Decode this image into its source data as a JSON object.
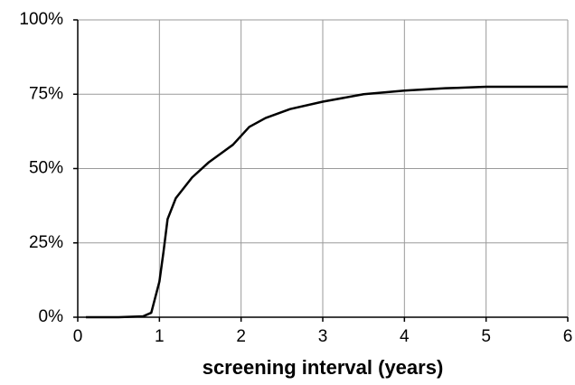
{
  "chart_data": {
    "type": "line",
    "x_label": "screening interval (years)",
    "x": [
      0.1,
      0.5,
      0.8,
      0.9,
      1.0,
      1.05,
      1.1,
      1.2,
      1.4,
      1.6,
      1.8,
      1.9,
      2.0,
      2.1,
      2.3,
      2.6,
      3.0,
      3.5,
      4.0,
      4.5,
      5.0,
      6.0
    ],
    "values": [
      0,
      0,
      0.3,
      1.5,
      12,
      22,
      33,
      40,
      47,
      52,
      56,
      58,
      61,
      64,
      67,
      70,
      72.5,
      75,
      76.2,
      77,
      77.5,
      77.5
    ],
    "color": "#000000",
    "xlim": [
      0,
      6
    ],
    "xticks": [
      0,
      1,
      2,
      3,
      4,
      5,
      6
    ],
    "ylim": [
      0,
      100
    ],
    "yticks": [
      {
        "value": 0,
        "label": "0%"
      },
      {
        "value": 25,
        "label": "25%"
      },
      {
        "value": 50,
        "label": "50%"
      },
      {
        "value": 75,
        "label": "75%"
      },
      {
        "value": 100,
        "label": "100%"
      }
    ],
    "grid": true
  }
}
